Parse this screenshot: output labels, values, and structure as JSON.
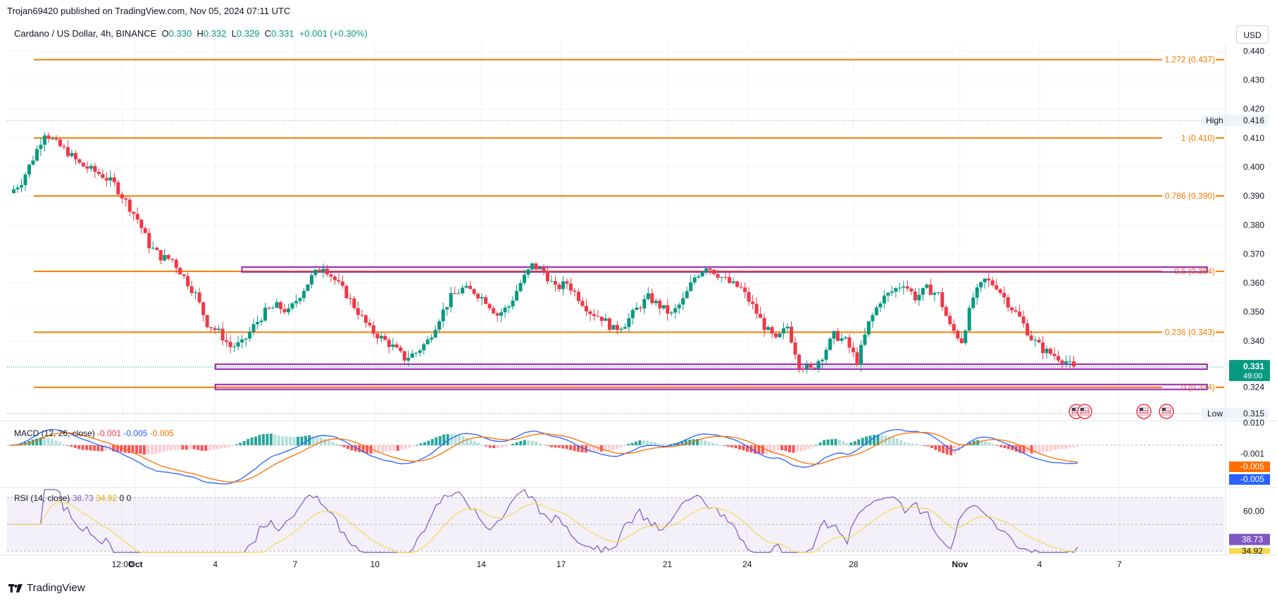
{
  "header": {
    "publisher": "Trojan69420 published on TradingView.com, Nov 05, 2024 07:11 UTC",
    "symbol": "Cardano / US Dollar, 4h, BINANCE",
    "o_label": "O",
    "o_value": "0.330",
    "h_label": "H",
    "h_value": "0.332",
    "l_label": "L",
    "l_value": "0.329",
    "c_label": "C",
    "c_value": "0.331",
    "change": "+0.001 (+0.30%)",
    "currency": "USD"
  },
  "brand": "TradingView",
  "colors": {
    "up": "#089981",
    "down": "#f23645",
    "fib": "#f57c00",
    "zone": "#9c27b0",
    "macd": "#2962ff",
    "signal": "#ff6d00",
    "rsi": "#7e57c2",
    "rsi_ma": "#f7d94c"
  },
  "chart_data": [
    {
      "type": "line",
      "title": "",
      "price_axis": [
        "0.440",
        "0.430",
        "0.420",
        "0.410",
        "0.400",
        "0.390",
        "0.380",
        "0.370",
        "0.360",
        "0.350",
        "0.340",
        "0.324"
      ],
      "ylim": [
        0.313,
        0.443
      ],
      "x_ticks": [
        "12:00",
        "Oct",
        "4",
        "7",
        "10",
        "14",
        "17",
        "21",
        "24",
        "28",
        "Nov",
        "4",
        "7"
      ],
      "high": {
        "label": "High",
        "value": "0.416"
      },
      "low": {
        "label": "Low",
        "value": "0.315"
      },
      "last": {
        "value": "0.331",
        "countdown": "49:00"
      },
      "fib_levels": [
        {
          "label": "1.272 (0.437)",
          "value": 0.437
        },
        {
          "label": "1 (0.410)",
          "value": 0.41
        },
        {
          "label": "0.786 (0.390)",
          "value": 0.39
        },
        {
          "label": "0.5 (0.364)",
          "value": 0.364
        },
        {
          "label": "0.236 (0.343)",
          "value": 0.343
        },
        {
          "label": "0 (0.324)",
          "value": 0.324
        }
      ],
      "zones": [
        {
          "from_day": 4.0,
          "to_day": 40.3,
          "value": 0.3645
        },
        {
          "from_day": 3.0,
          "to_day": 40.3,
          "value": 0.331
        },
        {
          "from_day": 3.0,
          "to_day": 40.3,
          "value": 0.324
        }
      ],
      "close_series": [
        0.395,
        0.403,
        0.412,
        0.408,
        0.405,
        0.401,
        0.399,
        0.397,
        0.394,
        0.388,
        0.382,
        0.373,
        0.369,
        0.368,
        0.362,
        0.356,
        0.346,
        0.343,
        0.338,
        0.339,
        0.345,
        0.35,
        0.352,
        0.35,
        0.356,
        0.362,
        0.366,
        0.361,
        0.356,
        0.35,
        0.344,
        0.341,
        0.338,
        0.334,
        0.336,
        0.34,
        0.348,
        0.355,
        0.358,
        0.357,
        0.354,
        0.349,
        0.352,
        0.36,
        0.366,
        0.364,
        0.358,
        0.36,
        0.355,
        0.35,
        0.348,
        0.344,
        0.346,
        0.351,
        0.355,
        0.352,
        0.349,
        0.354,
        0.362,
        0.366,
        0.363,
        0.36,
        0.358,
        0.352,
        0.345,
        0.34,
        0.345,
        0.332,
        0.33,
        0.335,
        0.342,
        0.34,
        0.333,
        0.346,
        0.354,
        0.357,
        0.36,
        0.355,
        0.358,
        0.356,
        0.345,
        0.34,
        0.355,
        0.361,
        0.359,
        0.353,
        0.348,
        0.341,
        0.337,
        0.335,
        0.333,
        0.329,
        0.331
      ]
    },
    {
      "type": "line",
      "title": "",
      "legend": {
        "name": "MACD (12, 26, close)",
        "v1": "-0.001",
        "v2": "-0.005",
        "v3": "-0.005"
      },
      "axis_labels": [
        "0.010",
        "-0.001",
        "-0.005",
        "-0.005"
      ],
      "ylim": [
        -0.012,
        0.007
      ]
    },
    {
      "type": "line",
      "title": "",
      "legend": {
        "name": "RSI (14, close)",
        "v1": "38.73",
        "v2": "34.92",
        "v3": "0",
        "v4": "0"
      },
      "axis_labels": [
        "60.00",
        "38.73",
        "34.92"
      ],
      "ylim": [
        28,
        77
      ]
    }
  ]
}
